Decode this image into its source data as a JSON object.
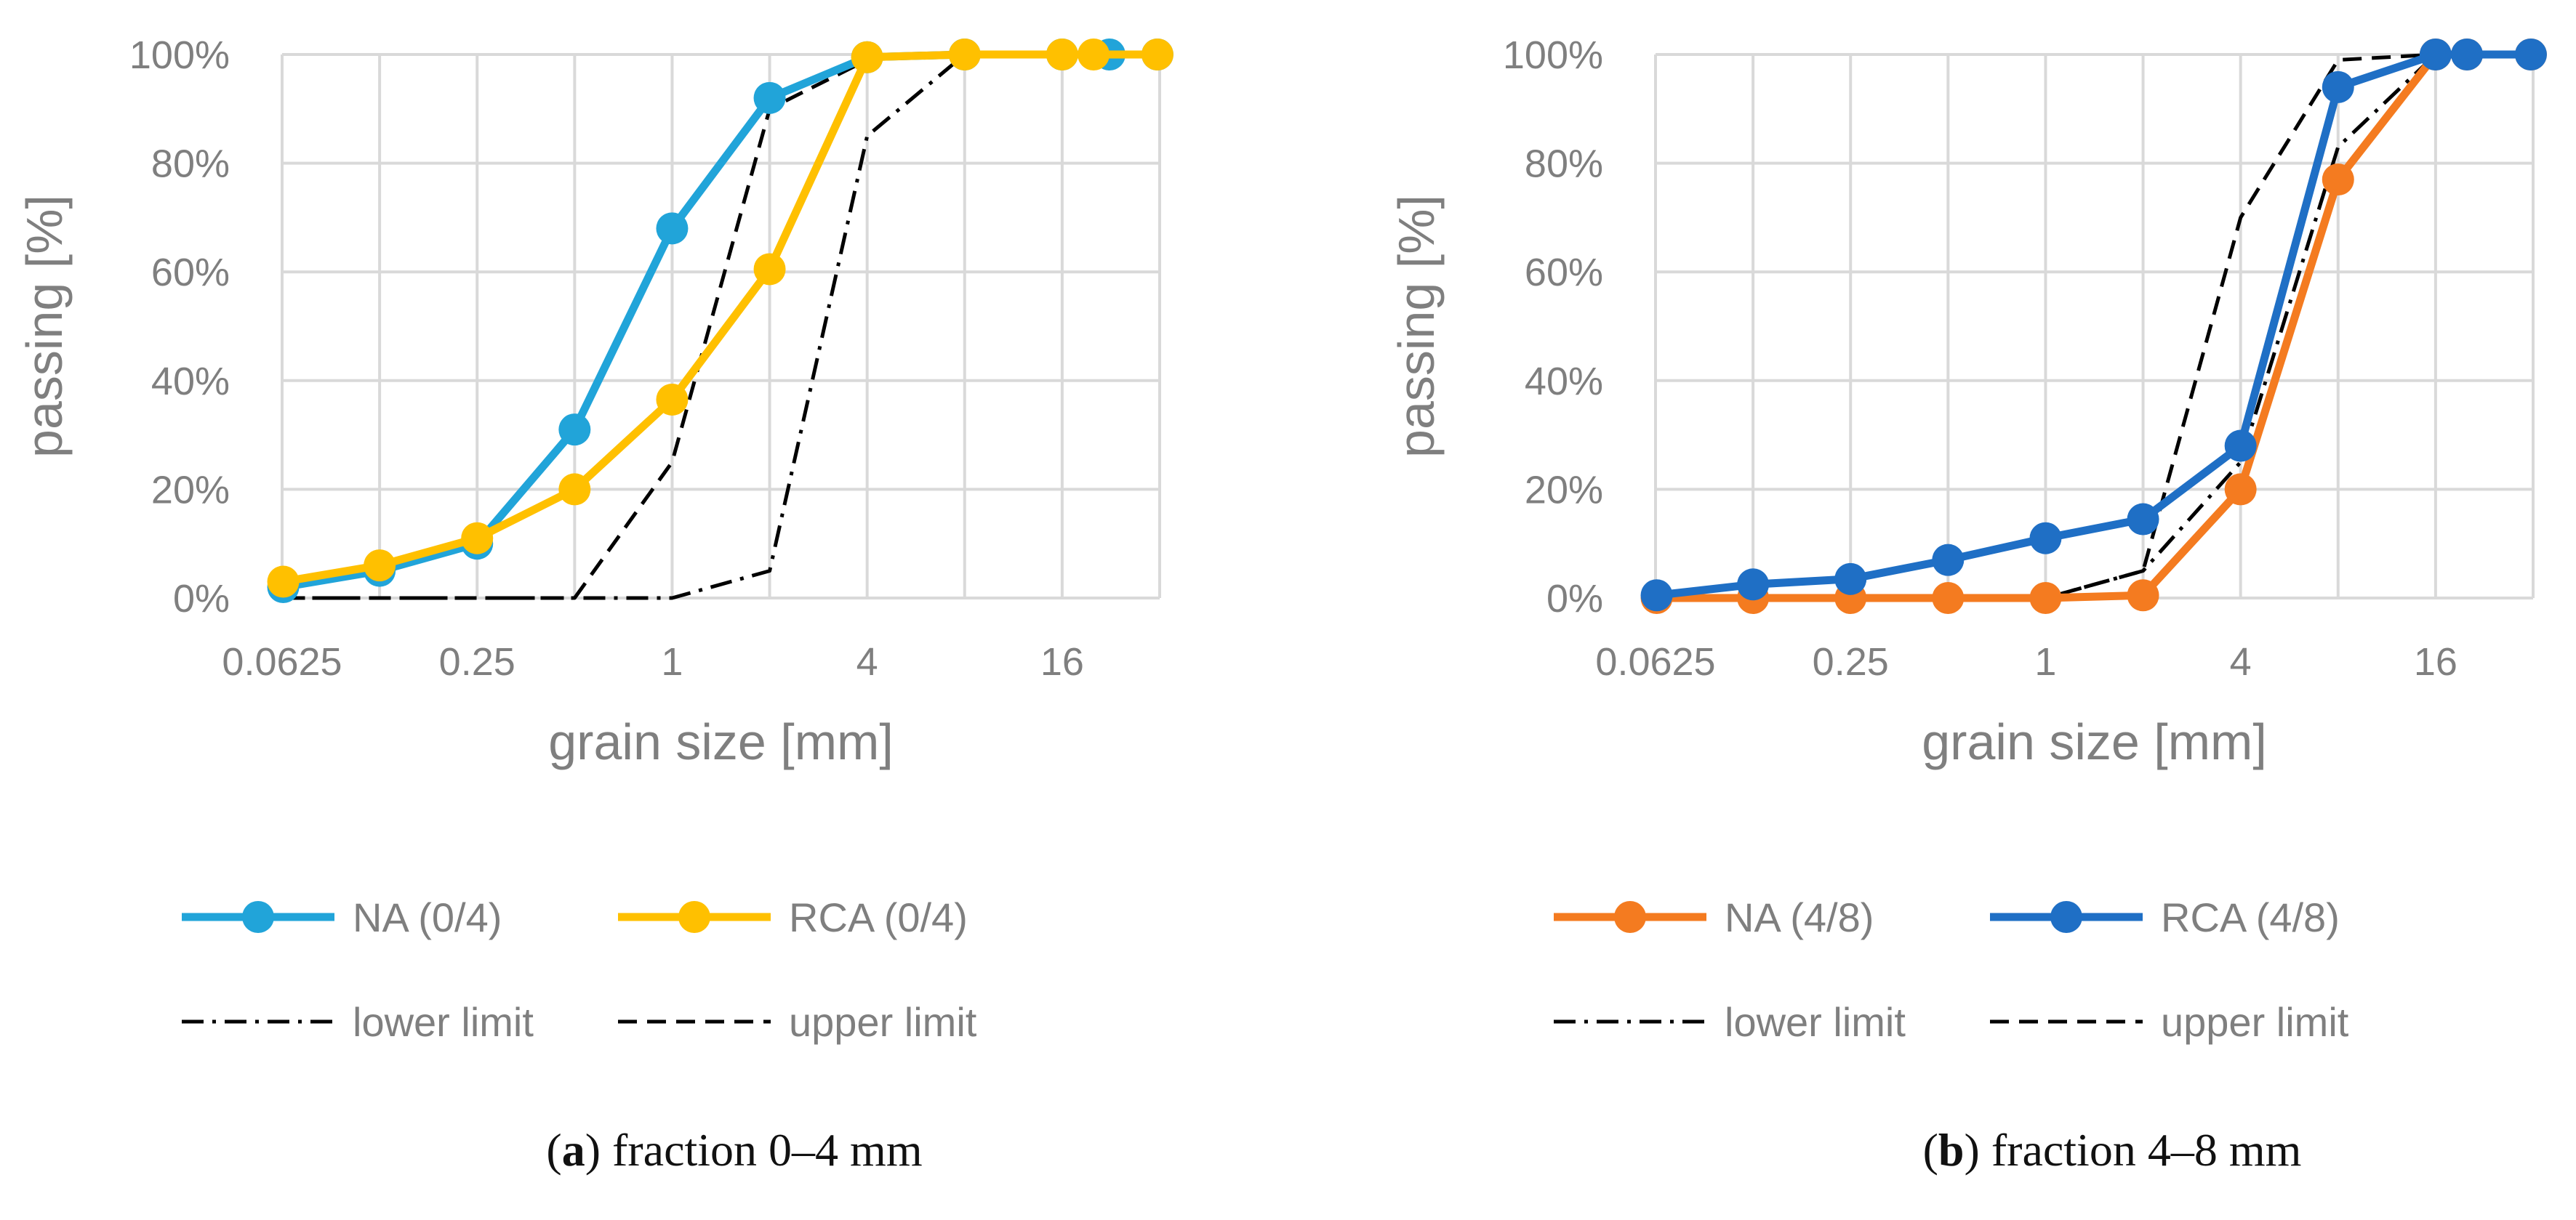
{
  "chart_data": [
    {
      "type": "line",
      "caption_letter": "a",
      "caption_text": " fraction 0–4 mm",
      "xlabel": "grain size [mm]",
      "ylabel": "passing [%]",
      "x_scale": "log2",
      "xlim": [
        0.0625,
        32
      ],
      "ylim": [
        0,
        100
      ],
      "x_ticks": [
        0.0625,
        0.25,
        1,
        4,
        16
      ],
      "x_tick_labels": [
        "0.0625",
        "0.25",
        "1",
        "4",
        "16"
      ],
      "y_ticks": [
        0,
        20,
        40,
        60,
        80,
        100
      ],
      "y_tick_labels": [
        "0%",
        "20%",
        "40%",
        "60%",
        "80%",
        "100%"
      ],
      "grid": true,
      "legend_position": "bottom",
      "series": [
        {
          "name": "NA (0/4)",
          "color": "#21a4d9",
          "style": "solid-marker",
          "x": [
            0.063,
            0.125,
            0.25,
            0.5,
            1,
            2,
            4,
            8,
            16,
            22.4,
            31.5
          ],
          "y": [
            2,
            5,
            10,
            31,
            68,
            92,
            99.5,
            100,
            100,
            100,
            100
          ]
        },
        {
          "name": "RCA (0/4)",
          "color": "#ffc000",
          "style": "solid-marker",
          "x": [
            0.063,
            0.125,
            0.25,
            0.5,
            1,
            2,
            4,
            8,
            16,
            20,
            31.5
          ],
          "y": [
            3,
            6,
            11,
            20,
            36.5,
            60.5,
            99.5,
            100,
            100,
            100,
            100
          ]
        },
        {
          "name": "lower limit",
          "color": "#000000",
          "style": "dashdot",
          "x": [
            0.063,
            0.5,
            1,
            2,
            4,
            8,
            31.5
          ],
          "y": [
            0,
            0,
            0,
            5,
            85,
            100,
            100
          ]
        },
        {
          "name": "upper limit",
          "color": "#000000",
          "style": "dashed",
          "x": [
            0.063,
            0.5,
            1,
            2,
            4,
            8,
            31.5
          ],
          "y": [
            0,
            0,
            25,
            90,
            99,
            100,
            100
          ]
        }
      ]
    },
    {
      "type": "line",
      "caption_letter": "b",
      "caption_text": " fraction 4–8 mm",
      "xlabel": "grain size [mm]",
      "ylabel": "passing [%]",
      "x_scale": "log2",
      "xlim": [
        0.0625,
        32
      ],
      "ylim": [
        0,
        100
      ],
      "x_ticks": [
        0.0625,
        0.25,
        1,
        4,
        16
      ],
      "x_tick_labels": [
        "0.0625",
        "0.25",
        "1",
        "4",
        "16"
      ],
      "y_ticks": [
        0,
        20,
        40,
        60,
        80,
        100
      ],
      "y_tick_labels": [
        "0%",
        "20%",
        "40%",
        "60%",
        "80%",
        "100%"
      ],
      "grid": true,
      "legend_position": "bottom",
      "series": [
        {
          "name": "NA (4/8)",
          "color": "#f47b20",
          "style": "solid-marker",
          "x": [
            0.063,
            0.125,
            0.25,
            0.5,
            1,
            2,
            4,
            8,
            16,
            20,
            31.5
          ],
          "y": [
            0,
            0,
            0,
            0,
            0,
            0.5,
            20,
            77,
            100,
            100,
            100
          ]
        },
        {
          "name": "RCA (4/8)",
          "color": "#1f6fc5",
          "style": "solid-marker",
          "x": [
            0.063,
            0.125,
            0.25,
            0.5,
            1,
            2,
            4,
            8,
            16,
            20,
            31.5
          ],
          "y": [
            0.5,
            2.5,
            3.5,
            7,
            11,
            14.5,
            28,
            94,
            100,
            100,
            100
          ]
        },
        {
          "name": "lower limit",
          "color": "#000000",
          "style": "dashdot",
          "x": [
            0.063,
            0.5,
            1,
            2,
            4,
            8,
            16,
            31.5
          ],
          "y": [
            0,
            0,
            0,
            5,
            25,
            83,
            100,
            100
          ]
        },
        {
          "name": "upper limit",
          "color": "#000000",
          "style": "dashed",
          "x": [
            0.063,
            0.5,
            1,
            2,
            4,
            8,
            16,
            31.5
          ],
          "y": [
            0,
            0,
            0,
            5,
            70,
            99,
            100,
            100
          ]
        }
      ]
    }
  ]
}
